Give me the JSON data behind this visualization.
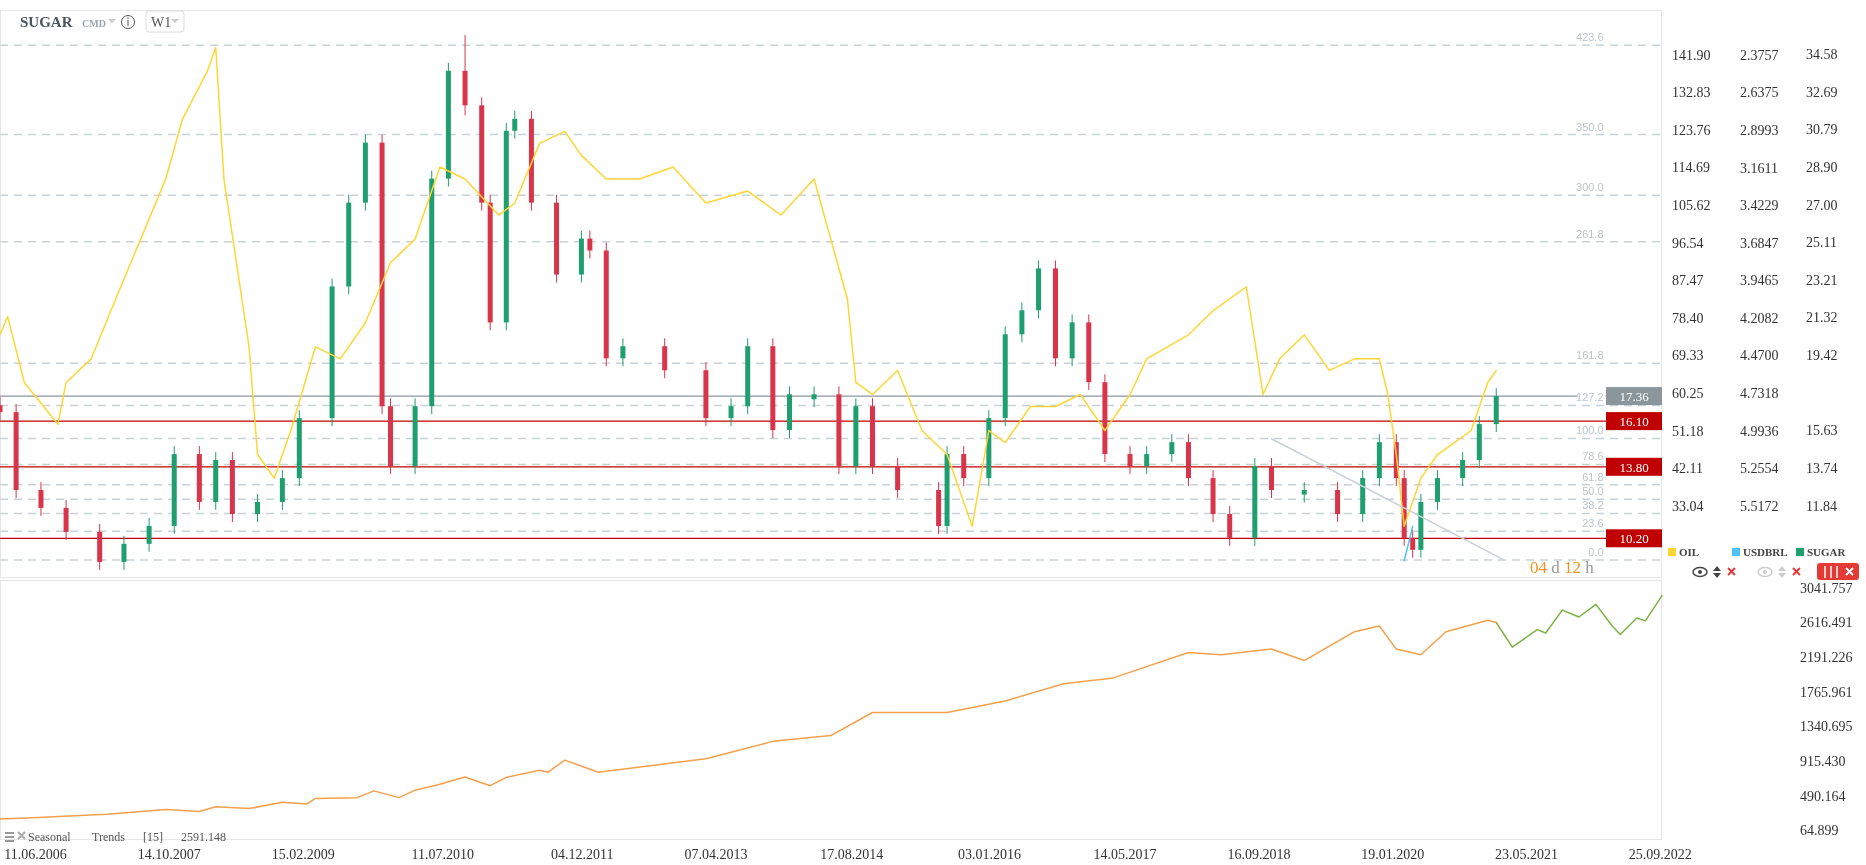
{
  "chart_data": [
    {
      "type": "candlestick",
      "title": "SUGAR",
      "subtitle": "CMD",
      "annotations": [
        "W1",
        "04 d 12 h",
        {
          "text": "423.6",
          "x": "2022-03",
          "y": 35.03
        },
        {
          "text": "350.0",
          "x": "2022-03",
          "y": 30.53
        },
        {
          "text": "300.0",
          "x": "2022-03",
          "y": 27.47
        },
        {
          "text": "261.8",
          "x": "2022-03",
          "y": 25.13
        },
        {
          "text": "161.8",
          "x": "2022-03",
          "y": 19.01
        },
        {
          "text": "127.2",
          "x": "2022-03",
          "y": 16.89
        },
        {
          "text": "100.0",
          "x": "2022-03",
          "y": 15.23
        },
        {
          "text": "78.6",
          "x": "2022-03",
          "y": 13.92
        },
        {
          "text": "61.8",
          "x": "2022-03",
          "y": 12.89
        },
        {
          "text": "50.0",
          "x": "2022-03",
          "y": 12.17
        },
        {
          "text": "38.2",
          "x": "2022-03",
          "y": 11.45
        },
        {
          "text": "23.6",
          "x": "2022-03",
          "y": 10.55
        },
        {
          "text": "0.0",
          "x": "2022-03",
          "y": 9.11
        }
      ],
      "xlim": [
        "2006-02",
        "2022-10"
      ],
      "tick_labels": "y",
      "legend": "bottom right",
      "ylim": [
        8.2,
        36.8
      ],
      "yticks": [
        {
          "value": 34.58,
          "label": "34.58"
        },
        {
          "value": 32.69,
          "label": "32.69"
        },
        {
          "value": 30.79,
          "label": "30.79"
        },
        {
          "value": 28.9,
          "label": "28.90"
        },
        {
          "value": 27,
          "label": "27.00"
        },
        {
          "value": 25.11,
          "label": "25.11"
        },
        {
          "value": 23.21,
          "label": "23.21"
        },
        {
          "value": 21.32,
          "label": "21.32"
        },
        {
          "value": 19.42,
          "label": "19.42"
        },
        {
          "value": 15.63,
          "label": "15.63"
        },
        {
          "value": 13.74,
          "label": "13.74"
        },
        {
          "value": 11.84,
          "label": "11.84"
        }
      ],
      "y2lim": [
        15.6,
        152.7
      ],
      "y2ticks": [
        {
          "value": 141.9,
          "label": "141.90"
        },
        {
          "value": 132.83,
          "label": "132.83"
        },
        {
          "value": 123.76,
          "label": "123.76"
        },
        {
          "value": 114.69,
          "label": "114.69"
        },
        {
          "value": 105.62,
          "label": "105.62"
        },
        {
          "value": 96.54,
          "label": "96.54"
        },
        {
          "value": 87.47,
          "label": "87.47"
        },
        {
          "value": 78.4,
          "label": "78.40"
        },
        {
          "value": 69.33,
          "label": "69.33"
        },
        {
          "value": 60.25,
          "label": "60.25"
        },
        {
          "value": 51.18,
          "label": "51.18"
        },
        {
          "value": 42.11,
          "label": "42.11"
        },
        {
          "value": 33.04,
          "label": "33.04"
        }
      ],
      "y3lim": [
        6.02,
        2.064
      ],
      "y3ticks": [
        {
          "value": 2.3757,
          "label": "2.3757"
        },
        {
          "value": 2.6375,
          "label": "2.6375"
        },
        {
          "value": 2.8993,
          "label": "2.8993"
        },
        {
          "value": 3.1611,
          "label": "3.1611"
        },
        {
          "value": 3.4229,
          "label": "3.4229"
        },
        {
          "value": 3.6847,
          "label": "3.6847"
        },
        {
          "value": 3.9465,
          "label": "3.9465"
        },
        {
          "value": 4.2082,
          "label": "4.2082"
        },
        {
          "value": 4.47,
          "label": "4.4700"
        },
        {
          "value": 4.7318,
          "label": "4.7318"
        },
        {
          "value": 4.9936,
          "label": "4.9936"
        },
        {
          "value": 5.2554,
          "label": "5.2554"
        },
        {
          "value": 5.5172,
          "label": "5.5172"
        }
      ],
      "series": [
        {
          "name": "OIL",
          "type": "line",
          "axis": "y2",
          "color": "#ffd633",
          "x": [
            "2006-02",
            "2006-03",
            "2006-05",
            "2006-09",
            "2006-10",
            "2007-01",
            "2007-04",
            "2007-07",
            "2007-10",
            "2007-12",
            "2008-03",
            "2008-04",
            "2008-05",
            "2008-08",
            "2008-09",
            "2008-11",
            "2009-01",
            "2009-04",
            "2009-07",
            "2009-10",
            "2010-01",
            "2010-04",
            "2010-07",
            "2010-10",
            "2011-02",
            "2011-04",
            "2011-07",
            "2011-10",
            "2011-12",
            "2012-03",
            "2012-07",
            "2012-11",
            "2013-03",
            "2013-08",
            "2013-12",
            "2014-04",
            "2014-06",
            "2014-08",
            "2014-09",
            "2014-11",
            "2015-02",
            "2015-05",
            "2015-08",
            "2015-11",
            "2016-01",
            "2016-03",
            "2016-06",
            "2016-09",
            "2016-12",
            "2017-03",
            "2017-06",
            "2017-08",
            "2018-01",
            "2018-04",
            "2018-08",
            "2018-10",
            "2018-12",
            "2019-03",
            "2019-06",
            "2019-09",
            "2019-12",
            "2020-01",
            "2020-02",
            "2020-03",
            "2020-05",
            "2020-07",
            "2020-09",
            "2020-11",
            "2021-01",
            "2021-02"
          ],
          "values": [
            74.3,
            78.7,
            62.8,
            52.7,
            62.8,
            68.5,
            83.0,
            97.4,
            111.9,
            126.3,
            137.9,
            143.6,
            111.9,
            71.4,
            45.4,
            39.7,
            51.2,
            71.4,
            68.5,
            77.2,
            91.7,
            97.4,
            114.8,
            111.9,
            103.2,
            106.1,
            120.5,
            123.4,
            117.6,
            111.9,
            111.9,
            114.8,
            106.1,
            109.0,
            103.2,
            111.9,
            97.4,
            83.0,
            62.8,
            59.9,
            65.7,
            51.2,
            45.4,
            28.1,
            51.2,
            48.3,
            57.0,
            57.0,
            59.9,
            51.2,
            59.9,
            68.5,
            74.3,
            80.1,
            85.9,
            59.9,
            68.5,
            74.3,
            65.7,
            68.5,
            68.5,
            59.9,
            45.4,
            28.1,
            39.7,
            45.4,
            48.3,
            51.2,
            62.8,
            65.7
          ]
        },
        {
          "name": "USDBRL",
          "type": "line",
          "axis": "y3",
          "color": "#4fc3f7",
          "x": [
            "2020-03",
            "2020-04"
          ],
          "values": [
            5.9,
            5.66
          ]
        },
        {
          "type": "line",
          "color": "#c9d1d7",
          "x": [
            "2018-11",
            "2021-03"
          ],
          "values": [
            15.21,
            9.11
          ]
        },
        {
          "name": "SUGAR",
          "color": "#1f9e6f",
          "colors": [
            "#d8344a",
            "#d8344a",
            "#d8344a",
            "#d8344a",
            "#d8344a",
            "#1f9e6f",
            "#1f9e6f",
            "#1f9e6f",
            "#d8344a",
            "#1f9e6f",
            "#d8344a",
            "#1f9e6f",
            "#1f9e6f",
            "#1f9e6f",
            "#1f9e6f",
            "#1f9e6f",
            "#1f9e6f",
            "#d8344a",
            "#d8344a",
            "#1f9e6f",
            "#1f9e6f",
            "#1f9e6f",
            "#d8344a",
            "#d8344a",
            "#d8344a",
            "#1f9e6f",
            "#1f9e6f",
            "#d8344a",
            "#d8344a",
            "#1f9e6f",
            "#d8344a",
            "#d8344a",
            "#1f9e6f",
            "#d8344a",
            "#d8344a",
            "#1f9e6f",
            "#1f9e6f",
            "#d8344a",
            "#1f9e6f",
            "#1f9e6f",
            "#d8344a",
            "#1f9e6f",
            "#d8344a",
            "#d8344a",
            "#d8344a",
            "#1f9e6f",
            "#d8344a",
            "#1f9e6f",
            "#1f9e6f",
            "#1f9e6f",
            "#1f9e6f",
            "#d8344a",
            "#1f9e6f",
            "#d8344a",
            "#d8344a",
            "#d8344a",
            "#1f9e6f",
            "#1f9e6f",
            "#d8344a",
            "#d8344a",
            "#d8344a",
            "#1f9e6f",
            "#d8344a",
            "#1f9e6f",
            "#d8344a",
            "#1f9e6f",
            "#1f9e6f",
            "#d8344a",
            "#d8344a",
            "#d8344a",
            "#1f9e6f",
            "#1f9e6f",
            "#1f9e6f",
            "#1f9e6f",
            "#1f9e6f"
          ],
          "x": [
            "2006-02",
            "2006-04",
            "2006-07",
            "2006-10",
            "2007-02",
            "2007-05",
            "2007-08",
            "2007-11",
            "2008-02",
            "2008-04",
            "2008-06",
            "2008-09",
            "2008-12",
            "2009-02",
            "2009-06",
            "2009-08",
            "2009-10",
            "2009-12",
            "2010-01",
            "2010-04",
            "2010-06",
            "2010-08",
            "2010-10",
            "2010-12",
            "2011-01",
            "2011-03",
            "2011-04",
            "2011-06",
            "2011-09",
            "2011-12",
            "2012-01",
            "2012-03",
            "2012-05",
            "2012-10",
            "2013-03",
            "2013-06",
            "2013-08",
            "2013-11",
            "2014-01",
            "2014-04",
            "2014-07",
            "2014-09",
            "2014-11",
            "2015-02",
            "2015-07",
            "2015-08",
            "2015-10",
            "2016-01",
            "2016-03",
            "2016-05",
            "2016-07",
            "2016-09",
            "2016-11",
            "2017-01",
            "2017-03",
            "2017-06",
            "2017-08",
            "2017-11",
            "2018-01",
            "2018-04",
            "2018-06",
            "2018-09",
            "2018-11",
            "2019-03",
            "2019-07",
            "2019-10",
            "2019-12",
            "2020-02",
            "2020-03",
            "2020-04",
            "2020-05",
            "2020-07",
            "2020-10",
            "2020-12",
            "2021-02"
          ],
          "ohlc": [
            [
              16.9,
              17.3,
              16.15,
              16.55
            ],
            [
              16.55,
              16.95,
              12.23,
              12.63
            ],
            [
              12.63,
              13.03,
              11.33,
              11.73
            ],
            [
              11.73,
              12.13,
              10.12,
              10.52
            ],
            [
              10.52,
              10.92,
              8.61,
              9.01
            ],
            [
              9.01,
              10.32,
              8.61,
              9.92
            ],
            [
              9.92,
              11.22,
              9.52,
              10.82
            ],
            [
              10.82,
              14.84,
              10.42,
              14.44
            ],
            [
              14.44,
              14.84,
              11.63,
              12.03
            ],
            [
              12.03,
              14.54,
              11.63,
              14.14
            ],
            [
              14.14,
              14.54,
              11.02,
              11.42
            ],
            [
              11.42,
              12.43,
              11.02,
              12.03
            ],
            [
              12.03,
              13.63,
              11.63,
              13.23
            ],
            [
              13.23,
              16.65,
              12.83,
              16.25
            ],
            [
              16.25,
              23.28,
              15.85,
              22.88
            ],
            [
              22.88,
              27.5,
              22.48,
              27.1
            ],
            [
              27.1,
              30.52,
              26.7,
              30.12
            ],
            [
              30.12,
              30.52,
              16.45,
              16.85
            ],
            [
              16.85,
              17.25,
              13.44,
              13.84
            ],
            [
              13.84,
              17.25,
              13.44,
              16.85
            ],
            [
              16.85,
              28.71,
              16.45,
              28.31
            ],
            [
              28.31,
              34.14,
              27.91,
              33.74
            ],
            [
              33.74,
              35.54,
              31.5,
              32.0
            ],
            [
              32.0,
              32.4,
              26.7,
              27.1
            ],
            [
              27.1,
              27.5,
              20.67,
              21.07
            ],
            [
              21.07,
              31.12,
              20.67,
              30.72
            ],
            [
              30.72,
              31.72,
              30.32,
              31.32
            ],
            [
              31.32,
              31.72,
              26.7,
              27.1
            ],
            [
              27.1,
              27.5,
              23.08,
              23.48
            ],
            [
              23.48,
              25.69,
              23.08,
              25.29
            ],
            [
              25.29,
              25.69,
              24.29,
              24.69
            ],
            [
              24.69,
              25.09,
              18.86,
              19.26
            ],
            [
              19.26,
              20.27,
              18.86,
              19.87
            ],
            [
              19.87,
              20.27,
              18.26,
              18.66
            ],
            [
              18.66,
              19.06,
              15.85,
              16.25
            ],
            [
              16.25,
              17.25,
              15.85,
              16.85
            ],
            [
              16.85,
              20.27,
              16.45,
              19.87
            ],
            [
              19.87,
              20.27,
              15.25,
              15.65
            ],
            [
              15.65,
              17.85,
              15.25,
              17.45
            ],
            [
              17.2,
              17.85,
              16.8,
              17.45
            ],
            [
              17.45,
              17.85,
              13.44,
              13.84
            ],
            [
              13.84,
              17.25,
              13.44,
              16.85
            ],
            [
              16.85,
              17.25,
              13.44,
              13.84
            ],
            [
              13.84,
              14.24,
              12.23,
              12.63
            ],
            [
              12.63,
              13.03,
              10.42,
              10.82
            ],
            [
              10.82,
              14.84,
              10.42,
              14.44
            ],
            [
              14.44,
              14.84,
              12.83,
              13.23
            ],
            [
              13.23,
              16.65,
              12.83,
              16.25
            ],
            [
              16.25,
              20.87,
              15.85,
              20.47
            ],
            [
              20.47,
              22.08,
              20.07,
              21.68
            ],
            [
              21.68,
              24.19,
              21.28,
              23.79
            ],
            [
              23.79,
              24.19,
              18.86,
              19.26
            ],
            [
              19.26,
              21.47,
              18.86,
              21.07
            ],
            [
              21.07,
              21.47,
              17.66,
              18.06
            ],
            [
              18.06,
              18.46,
              14.04,
              14.44
            ],
            [
              14.44,
              14.84,
              13.44,
              13.84
            ],
            [
              13.84,
              14.84,
              13.44,
              14.44
            ],
            [
              14.44,
              15.44,
              14.04,
              15.04
            ],
            [
              15.04,
              15.44,
              12.83,
              13.23
            ],
            [
              13.23,
              13.63,
              11.02,
              11.42
            ],
            [
              11.42,
              11.82,
              9.82,
              10.22
            ],
            [
              10.22,
              14.24,
              9.82,
              13.84
            ],
            [
              13.84,
              14.24,
              12.23,
              12.63
            ],
            [
              12.4,
              13.03,
              12.0,
              12.63
            ],
            [
              12.63,
              13.03,
              11.02,
              11.42
            ],
            [
              11.42,
              13.63,
              11.02,
              13.23
            ],
            [
              13.23,
              15.44,
              12.83,
              15.04
            ],
            [
              15.04,
              15.44,
              12.83,
              13.23
            ],
            [
              13.23,
              13.63,
              9.82,
              10.22
            ],
            [
              10.22,
              10.62,
              9.22,
              9.62
            ],
            [
              9.62,
              12.43,
              9.22,
              12.03
            ],
            [
              12.03,
              13.63,
              11.63,
              13.23
            ],
            [
              13.23,
              14.54,
              12.83,
              14.14
            ],
            [
              14.14,
              16.35,
              13.74,
              15.95
            ],
            [
              15.95,
              17.76,
              15.55,
              17.36
            ]
          ]
        }
      ],
      "ref_lines": [
        {
          "axis": "y",
          "value": 35.03,
          "color": "#c8d2d8",
          "line_style": "dashed"
        },
        {
          "axis": "y",
          "value": 30.53,
          "color": "#c8d2d8",
          "line_style": "dashed"
        },
        {
          "axis": "y",
          "value": 27.47,
          "color": "#c8d2d8",
          "line_style": "dashed"
        },
        {
          "axis": "y",
          "value": 25.13,
          "color": "#c8d2d8",
          "line_style": "dashed"
        },
        {
          "axis": "y",
          "value": 19.01,
          "color": "#c8d2d8",
          "line_style": "dashed"
        },
        {
          "axis": "y",
          "value": 16.89,
          "color": "#c8d2d8",
          "line_style": "dashed"
        },
        {
          "axis": "y",
          "value": 15.23,
          "color": "#c8d2d8",
          "line_style": "dashed"
        },
        {
          "axis": "y",
          "value": 13.92,
          "color": "#c8d2d8",
          "line_style": "dashed"
        },
        {
          "axis": "y",
          "value": 12.89,
          "color": "#c8d2d8",
          "line_style": "dashed"
        },
        {
          "axis": "y",
          "value": 12.17,
          "color": "#c8d2d8",
          "line_style": "dashed"
        },
        {
          "axis": "y",
          "value": 11.45,
          "color": "#c8d2d8",
          "line_style": "dashed"
        },
        {
          "axis": "y",
          "value": 10.55,
          "color": "#c8d2d8",
          "line_style": "dashed"
        },
        {
          "axis": "y",
          "value": 9.11,
          "color": "#c8d2d8",
          "line_style": "dashed"
        },
        {
          "axis": "y",
          "value": 17.36,
          "label": "17.36",
          "color": "#8a969c",
          "line_style": "solid"
        },
        {
          "axis": "y",
          "value": 16.1,
          "label": "16.10",
          "color": "#c00000",
          "line_style": "solid"
        },
        {
          "axis": "y",
          "value": 13.8,
          "label": "13.80",
          "color": "#c00000",
          "line_style": "solid"
        },
        {
          "axis": "y",
          "value": 10.2,
          "label": "10.20",
          "color": "#c00000",
          "line_style": "solid"
        }
      ]
    },
    {
      "type": "line",
      "annotations": [
        "Seasonal",
        "Trends",
        "[15]",
        "2591.148"
      ],
      "xlim": [
        "2006-02",
        "2022-10"
      ],
      "xticks": [
        {
          "value": "2006-06-11",
          "label": "11.06.2006"
        },
        {
          "value": "2007-10-14",
          "label": "14.10.2007"
        },
        {
          "value": "2009-02-15",
          "label": "15.02.2009"
        },
        {
          "value": "2010-07-11",
          "label": "11.07.2010"
        },
        {
          "value": "2011-12-04",
          "label": "04.12.2011"
        },
        {
          "value": "2013-04-07",
          "label": "07.04.2013"
        },
        {
          "value": "2014-08-17",
          "label": "17.08.2014"
        },
        {
          "value": "2016-01-03",
          "label": "03.01.2016"
        },
        {
          "value": "2017-05-14",
          "label": "14.05.2017"
        },
        {
          "value": "2018-09-16",
          "label": "16.09.2018"
        },
        {
          "value": "2020-01-19",
          "label": "19.01.2020"
        },
        {
          "value": "2021-05-23",
          "label": "23.05.2021"
        },
        {
          "value": "2022-09-25",
          "label": "25.09.2022"
        }
      ],
      "ylim": [
        -55,
        3137
      ],
      "yticks": [
        3041.757,
        2616.491,
        2191.226,
        1765.961,
        1340.695,
        {
          "value": 915.43,
          "label": "915.430"
        },
        490.164,
        64.899
      ],
      "series": [
        {
          "color": "#f5a04a",
          "x": [
            "2006-02",
            "2006-06",
            "2006-11",
            "2007-03",
            "2007-10",
            "2008-02",
            "2008-04",
            "2008-08",
            "2008-12",
            "2009-03",
            "2009-04",
            "2009-09",
            "2009-11",
            "2010-02",
            "2010-04",
            "2010-07",
            "2010-10",
            "2011-01",
            "2011-03",
            "2011-07",
            "2011-08",
            "2011-10",
            "2012-02",
            "2013-03",
            "2013-11",
            "2014-06",
            "2014-11",
            "2015-08",
            "2016-03",
            "2016-10",
            "2017-04",
            "2018-01",
            "2018-05",
            "2018-11",
            "2019-03",
            "2019-09",
            "2019-12",
            "2020-02",
            "2020-05",
            "2020-08",
            "2021-01",
            "2021-02"
          ],
          "values": [
            202,
            217,
            244,
            262,
            318,
            294,
            354,
            331,
            409,
            388,
            456,
            465,
            548,
            465,
            557,
            630,
            718,
            612,
            713,
            800,
            777,
            926,
            777,
            943,
            1156,
            1227,
            1510,
            1510,
            1652,
            1864,
            1935,
            2247,
            2219,
            2289,
            2148,
            2502,
            2573,
            2289,
            2219,
            2502,
            2644,
            2615
          ]
        },
        {
          "color": "#7cb342",
          "x": [
            "2021-02",
            "2021-04",
            "2021-07",
            "2021-08",
            "2021-10",
            "2021-12",
            "2022-02",
            "2022-04",
            "2022-05",
            "2022-07",
            "2022-08",
            "2022-10"
          ],
          "values": [
            2615,
            2312,
            2528,
            2486,
            2767,
            2683,
            2838,
            2575,
            2468,
            2671,
            2635,
            2946
          ]
        }
      ]
    }
  ]
}
